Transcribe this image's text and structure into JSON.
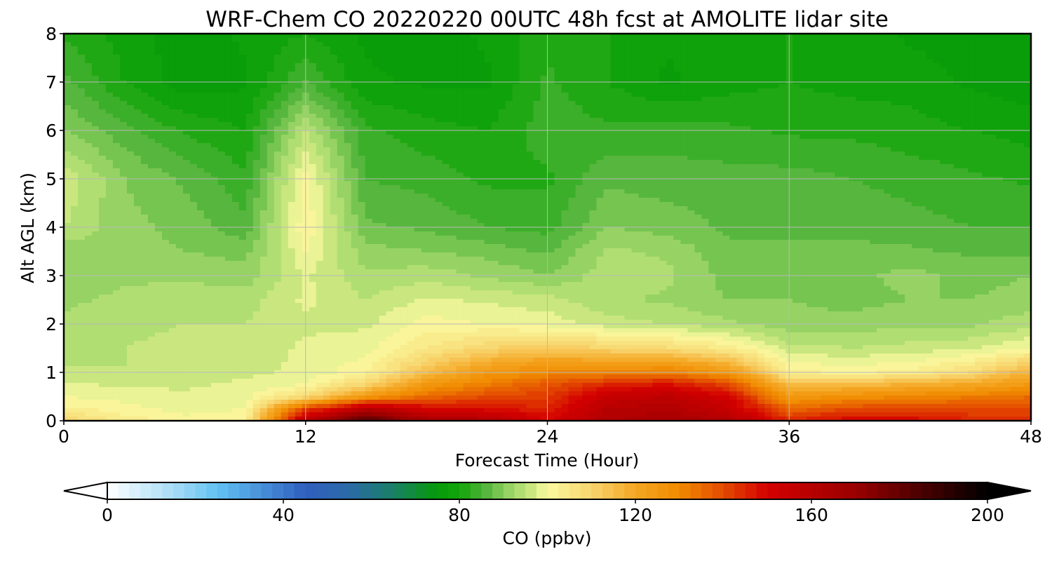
{
  "chart_data": {
    "type": "heatmap",
    "title": "WRF-Chem CO  20220220 00UTC 48h fcst at AMOLITE lidar site",
    "xlabel": "Forecast Time (Hour)",
    "ylabel": "Alt AGL (km)",
    "xlim": [
      0,
      48
    ],
    "ylim": [
      0,
      8
    ],
    "x_ticks": [
      0,
      12,
      24,
      36,
      48
    ],
    "y_ticks": [
      0,
      1,
      2,
      3,
      4,
      5,
      6,
      7,
      8
    ],
    "grid": true,
    "x": [
      0,
      3,
      6,
      9,
      12,
      15,
      18,
      21,
      24,
      27,
      30,
      33,
      36,
      39,
      42,
      45,
      48
    ],
    "y": [
      0,
      0.25,
      0.5,
      0.75,
      1,
      1.5,
      2,
      2.5,
      3,
      3.5,
      4,
      5,
      6,
      7,
      8
    ],
    "z": [
      [
        110,
        104,
        101,
        102,
        160,
        185,
        165,
        162,
        150,
        162,
        165,
        162,
        145,
        150,
        150,
        145,
        145
      ],
      [
        103,
        101,
        99,
        100,
        140,
        160,
        150,
        148,
        145,
        160,
        162,
        155,
        135,
        140,
        140,
        140,
        140
      ],
      [
        100,
        99,
        98,
        99,
        108,
        125,
        135,
        140,
        142,
        155,
        158,
        150,
        125,
        128,
        130,
        132,
        135
      ],
      [
        98,
        97,
        97,
        98,
        100,
        110,
        125,
        132,
        138,
        145,
        148,
        140,
        115,
        115,
        118,
        120,
        125
      ],
      [
        96,
        95,
        96,
        97,
        98,
        102,
        115,
        125,
        130,
        130,
        132,
        125,
        103,
        102,
        103,
        108,
        118
      ],
      [
        93,
        95,
        96,
        96,
        98,
        99,
        105,
        110,
        112,
        110,
        108,
        104,
        96,
        95,
        96,
        97,
        100
      ],
      [
        93,
        94,
        95,
        95,
        97,
        97,
        101,
        100,
        99,
        96,
        95,
        93,
        91,
        91,
        92,
        92,
        94
      ],
      [
        92,
        93,
        94,
        94,
        98,
        95,
        98,
        97,
        96,
        93,
        92,
        90,
        90,
        89,
        90,
        90,
        91
      ],
      [
        91,
        92,
        92,
        91,
        98,
        93,
        94,
        92,
        90,
        94,
        93,
        89,
        89,
        89,
        91,
        89,
        90
      ],
      [
        91,
        91,
        90,
        89,
        100,
        91,
        90,
        89,
        87,
        93,
        92,
        88,
        88,
        88,
        88,
        87,
        87
      ],
      [
        95,
        91,
        89,
        86,
        102,
        88,
        87,
        85,
        84,
        90,
        89,
        87,
        87,
        87,
        86,
        85,
        85
      ],
      [
        97,
        90,
        87,
        83,
        101,
        85,
        84,
        82,
        82,
        87,
        86,
        86,
        86,
        85,
        84,
        83,
        82
      ],
      [
        90,
        86,
        82,
        80,
        95,
        83,
        81,
        80,
        84,
        83,
        84,
        83,
        82,
        82,
        81,
        80,
        79
      ],
      [
        86,
        80,
        76,
        77,
        85,
        78,
        77,
        77,
        83,
        80,
        77,
        79,
        80,
        79,
        79,
        77,
        76
      ],
      [
        82,
        79,
        76,
        78,
        80,
        77,
        76,
        78,
        82,
        80,
        78,
        80,
        80,
        79,
        77,
        76,
        75
      ]
    ],
    "colorbar": {
      "label": "CO  (ppbv)",
      "min": 0,
      "max": 200,
      "ticks": [
        0,
        40,
        80,
        120,
        160,
        200
      ],
      "extend": "both",
      "level_step": 2.5,
      "stops": [
        {
          "v": 0,
          "c": "#ffffff"
        },
        {
          "v": 15,
          "c": "#a8dcf6"
        },
        {
          "v": 25,
          "c": "#62c2f3"
        },
        {
          "v": 45,
          "c": "#2f5fbf"
        },
        {
          "v": 55,
          "c": "#2b6aa8"
        },
        {
          "v": 65,
          "c": "#1a8066"
        },
        {
          "v": 75,
          "c": "#059a08"
        },
        {
          "v": 80,
          "c": "#12a50a"
        },
        {
          "v": 86,
          "c": "#54b53c"
        },
        {
          "v": 92,
          "c": "#9fd76a"
        },
        {
          "v": 96,
          "c": "#c6e67c"
        },
        {
          "v": 100,
          "c": "#faf9a0"
        },
        {
          "v": 110,
          "c": "#f8d56e"
        },
        {
          "v": 120,
          "c": "#f5a623"
        },
        {
          "v": 130,
          "c": "#f08a00"
        },
        {
          "v": 140,
          "c": "#e34a00"
        },
        {
          "v": 150,
          "c": "#d40000"
        },
        {
          "v": 170,
          "c": "#9a0000"
        },
        {
          "v": 185,
          "c": "#4a0000"
        },
        {
          "v": 200,
          "c": "#000000"
        }
      ]
    }
  }
}
